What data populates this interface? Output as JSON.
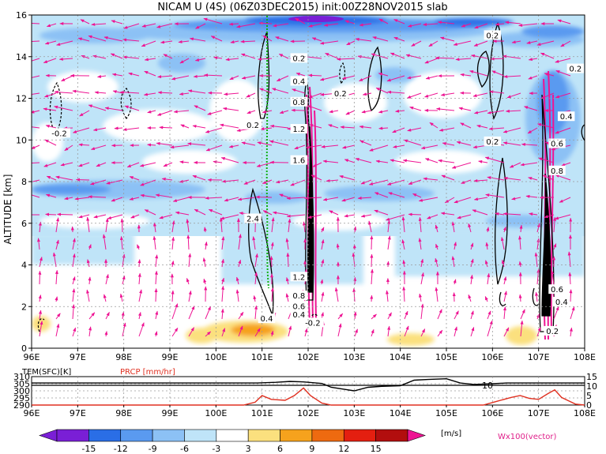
{
  "title": "NICAM U (4S) (06Z03DEC2015) init:00Z28NOV2015 slab",
  "colors": {
    "neg15": "#7a1fd6",
    "neg12": "#2a6ee6",
    "neg9": "#5a9af0",
    "neg6": "#8cc1f5",
    "neg3": "#bfe4f8",
    "zero": "#ffffff",
    "pos3": "#fbe07e",
    "pos6": "#f6a21d",
    "pos9": "#ee6a10",
    "pos12": "#e41f10",
    "pos15": "#b20e0e",
    "above": "#ee1493",
    "vector": "#ee1493",
    "temp_line": "#000000",
    "prcp_line": "#e03020",
    "green_line": "#10b010"
  },
  "chart_data": [
    {
      "type": "heatmap",
      "title": "NICAM U (4S) (06Z03DEC2015) init:00Z28NOV2015 slab",
      "ylabel": "ALTITUDE [km]",
      "xlim": [
        96,
        108
      ],
      "ylim": [
        0,
        16
      ],
      "x_ticks": [
        "96E",
        "97E",
        "98E",
        "99E",
        "100E",
        "101E",
        "102E",
        "103E",
        "104E",
        "105E",
        "106E",
        "107E",
        "108E"
      ],
      "y_ticks": [
        "0",
        "2",
        "4",
        "6",
        "8",
        "10",
        "12",
        "14",
        "16"
      ],
      "grid": true,
      "vector_legend": "Wx100(vector)",
      "contour_labels": [
        {
          "text": "-0.2",
          "x": 96.6,
          "y": 10.3
        },
        {
          "text": "0.2",
          "x": 100.8,
          "y": 10.7
        },
        {
          "text": "0.2",
          "x": 102.7,
          "y": 12.2
        },
        {
          "text": "0.2",
          "x": 101.8,
          "y": 13.9
        },
        {
          "text": "0.4",
          "x": 101.8,
          "y": 12.8
        },
        {
          "text": "0.8",
          "x": 101.8,
          "y": 11.8
        },
        {
          "text": "1.2",
          "x": 101.8,
          "y": 10.5
        },
        {
          "text": "1.6",
          "x": 101.8,
          "y": 9.0
        },
        {
          "text": "2.4",
          "x": 100.8,
          "y": 6.2
        },
        {
          "text": "1.2",
          "x": 101.8,
          "y": 3.4
        },
        {
          "text": "0.8",
          "x": 101.8,
          "y": 2.5
        },
        {
          "text": "0.6",
          "x": 101.8,
          "y": 2.0
        },
        {
          "text": "0.4",
          "x": 101.8,
          "y": 1.6
        },
        {
          "text": "-0.2",
          "x": 102.1,
          "y": 1.2
        },
        {
          "text": "0.4",
          "x": 101.1,
          "y": 1.4
        },
        {
          "text": "0.2",
          "x": 106.0,
          "y": 15.0
        },
        {
          "text": "0.2",
          "x": 107.8,
          "y": 13.4
        },
        {
          "text": "0.4",
          "x": 107.6,
          "y": 11.1
        },
        {
          "text": "0.2",
          "x": 106.0,
          "y": 9.9
        },
        {
          "text": "0.6",
          "x": 107.4,
          "y": 9.8
        },
        {
          "text": "0.8",
          "x": 107.4,
          "y": 8.5
        },
        {
          "text": "0.6",
          "x": 107.4,
          "y": 2.8
        },
        {
          "text": "0.4",
          "x": 107.5,
          "y": 2.2
        },
        {
          "text": "0.2",
          "x": 107.3,
          "y": 0.8
        }
      ]
    },
    {
      "type": "line",
      "xlim": [
        96,
        108
      ],
      "x_ticks": [
        "96E",
        "97E",
        "98E",
        "99E",
        "100E",
        "101E",
        "102E",
        "103E",
        "104E",
        "105E",
        "106E",
        "107E",
        "108E"
      ],
      "series": [
        {
          "name": "TEM(SFC)[K]",
          "ylim": [
            290,
            310
          ],
          "y_ticks": [
            "290",
            "295",
            "300",
            "305",
            "310"
          ],
          "x": [
            96,
            97,
            98,
            99,
            100,
            100.9,
            101.3,
            101.6,
            101.9,
            102.3,
            102.5,
            102.8,
            103.0,
            103.3,
            103.6,
            104.0,
            104.3,
            104.6,
            105.0,
            105.3,
            105.6,
            106.0,
            106.3,
            106.6,
            107.0,
            107.3,
            107.6,
            108
          ],
          "values": [
            305.5,
            305.5,
            305.5,
            305.5,
            305.5,
            305.5,
            306.0,
            306.6,
            306.3,
            305.2,
            302.5,
            301.0,
            300.0,
            302.5,
            303.2,
            303.6,
            307.5,
            308.0,
            308.5,
            305.5,
            304.5,
            305.0,
            305.5,
            305.5,
            305.5,
            305.5,
            305.5,
            305.5
          ]
        },
        {
          "name": "PRCP [mm/hr]",
          "ylim": [
            0,
            15
          ],
          "y_ticks": [
            "0",
            "5",
            "10",
            "15"
          ],
          "x": [
            96,
            100.6,
            100.85,
            101.0,
            101.2,
            101.5,
            101.7,
            101.9,
            102.05,
            102.3,
            102.5,
            105.8,
            106.1,
            106.4,
            106.6,
            106.8,
            107.0,
            107.2,
            107.35,
            107.5,
            107.8,
            108
          ],
          "values": [
            0,
            0,
            1.5,
            5,
            3,
            2.5,
            5,
            9,
            5,
            1,
            0,
            0,
            2,
            4,
            5,
            3.5,
            3,
            6,
            8,
            4,
            0.5,
            0
          ]
        }
      ],
      "annotation": "10"
    },
    {
      "type": "colorbar",
      "ticks": [
        "-15",
        "-12",
        "-9",
        "-6",
        "-3",
        "3",
        "6",
        "9",
        "12",
        "15"
      ],
      "unit": "[m/s]"
    }
  ]
}
